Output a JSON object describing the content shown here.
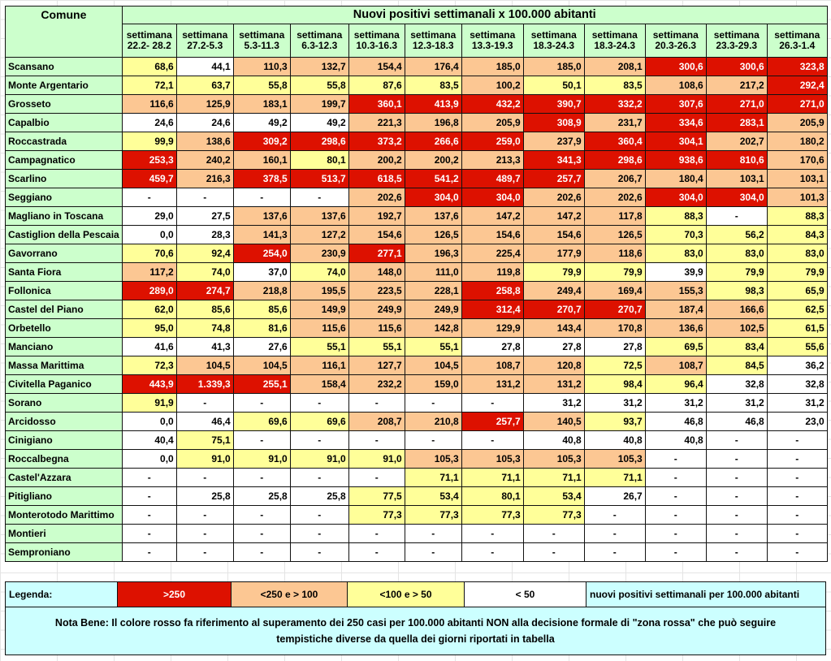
{
  "header": {
    "comune_label": "Comune",
    "title": "Nuovi positivi settimanali x 100.000 abitanti",
    "week_prefix": "settimana",
    "weeks": [
      "22.2- 28.2",
      "27.2-5.3",
      "5.3-11.3",
      "6.3-12.3",
      "10.3-16.3",
      "12.3-18.3",
      "13.3-19.3",
      "18.3-24.3",
      "18.3-24.3",
      "20.3-26.3",
      "23.3-29.3",
      "26.3-1.4"
    ]
  },
  "rows": [
    {
      "name": "Scansano",
      "values": [
        "68,6",
        "44,1",
        "110,3",
        "132,7",
        "154,4",
        "176,4",
        "185,0",
        "185,0",
        "208,1",
        "300,6",
        "300,6",
        "323,8"
      ]
    },
    {
      "name": "Monte Argentario",
      "values": [
        "72,1",
        "63,7",
        "55,8",
        "55,8",
        "87,6",
        "83,5",
        "100,2",
        "50,1",
        "83,5",
        "108,6",
        "217,2",
        "292,4"
      ]
    },
    {
      "name": "Grosseto",
      "values": [
        "116,6",
        "125,9",
        "183,1",
        "199,7",
        "360,1",
        "413,9",
        "432,2",
        "390,7",
        "332,2",
        "307,6",
        "271,0",
        "271,0"
      ]
    },
    {
      "name": "Capalbio",
      "values": [
        "24,6",
        "24,6",
        "49,2",
        "49,2",
        "221,3",
        "196,8",
        "205,9",
        "308,9",
        "231,7",
        "334,6",
        "283,1",
        "205,9"
      ]
    },
    {
      "name": "Roccastrada",
      "values": [
        "99,9",
        "138,6",
        "309,2",
        "298,6",
        "373,2",
        "266,6",
        "259,0",
        "237,9",
        "360,4",
        "304,1",
        "202,7",
        "180,2"
      ]
    },
    {
      "name": "Campagnatico",
      "values": [
        "253,3",
        "240,2",
        "160,1",
        "80,1",
        "200,2",
        "200,2",
        "213,3",
        "341,3",
        "298,6",
        "938,6",
        "810,6",
        "170,6"
      ]
    },
    {
      "name": "Scarlino",
      "values": [
        "459,7",
        "216,3",
        "378,5",
        "513,7",
        "618,5",
        "541,2",
        "489,7",
        "257,7",
        "206,7",
        "180,4",
        "103,1",
        "103,1"
      ]
    },
    {
      "name": "Seggiano",
      "values": [
        "-",
        "-",
        "-",
        "-",
        "202,6",
        "304,0",
        "304,0",
        "202,6",
        "202,6",
        "304,0",
        "304,0",
        "101,3"
      ]
    },
    {
      "name": "Magliano in Toscana",
      "values": [
        "29,0",
        "27,5",
        "137,6",
        "137,6",
        "192,7",
        "137,6",
        "147,2",
        "147,2",
        "117,8",
        "88,3",
        "-",
        "88,3"
      ]
    },
    {
      "name": "Castiglion della Pescaia",
      "values": [
        "0,0",
        "28,3",
        "141,3",
        "127,2",
        "154,6",
        "126,5",
        "154,6",
        "154,6",
        "126,5",
        "70,3",
        "56,2",
        "84,3"
      ]
    },
    {
      "name": "Gavorrano",
      "values": [
        "70,6",
        "92,4",
        "254,0",
        "230,9",
        "277,1",
        "196,3",
        "225,4",
        "177,9",
        "118,6",
        "83,0",
        "83,0",
        "83,0"
      ]
    },
    {
      "name": "Santa Fiora",
      "values": [
        "117,2",
        "74,0",
        "37,0",
        "74,0",
        "148,0",
        "111,0",
        "119,8",
        "79,9",
        "79,9",
        "39,9",
        "79,9",
        "79,9"
      ]
    },
    {
      "name": "Follonica",
      "values": [
        "289,0",
        "274,7",
        "218,8",
        "195,5",
        "223,5",
        "228,1",
        "258,8",
        "249,4",
        "169,4",
        "155,3",
        "98,3",
        "65,9"
      ]
    },
    {
      "name": "Castel del Piano",
      "values": [
        "62,0",
        "85,6",
        "85,6",
        "149,9",
        "249,9",
        "249,9",
        "312,4",
        "270,7",
        "270,7",
        "187,4",
        "166,6",
        "62,5"
      ]
    },
    {
      "name": "Orbetello",
      "values": [
        "95,0",
        "74,8",
        "81,6",
        "115,6",
        "115,6",
        "142,8",
        "129,9",
        "143,4",
        "170,8",
        "136,6",
        "102,5",
        "61,5"
      ]
    },
    {
      "name": "Manciano",
      "values": [
        "41,6",
        "41,3",
        "27,6",
        "55,1",
        "55,1",
        "55,1",
        "27,8",
        "27,8",
        "27,8",
        "69,5",
        "83,4",
        "55,6"
      ]
    },
    {
      "name": "Massa Marittima",
      "values": [
        "72,3",
        "104,5",
        "104,5",
        "116,1",
        "127,7",
        "104,5",
        "108,7",
        "120,8",
        "72,5",
        "108,7",
        "84,5",
        "36,2"
      ]
    },
    {
      "name": "Civitella Paganico",
      "values": [
        "443,9",
        "1.339,3",
        "255,1",
        "158,4",
        "232,2",
        "159,0",
        "131,2",
        "131,2",
        "98,4",
        "96,4",
        "32,8",
        "32,8"
      ]
    },
    {
      "name": "Sorano",
      "values": [
        "91,9",
        "-",
        "-",
        "-",
        "-",
        "-",
        "-",
        "31,2",
        "31,2",
        "31,2",
        "31,2",
        "31,2"
      ]
    },
    {
      "name": "Arcidosso",
      "values": [
        "0,0",
        "46,4",
        "69,6",
        "69,6",
        "208,7",
        "210,8",
        "257,7",
        "140,5",
        "93,7",
        "46,8",
        "46,8",
        "23,0"
      ]
    },
    {
      "name": "Cinigiano",
      "values": [
        "40,4",
        "75,1",
        "-",
        "-",
        "-",
        "-",
        "-",
        "40,8",
        "40,8",
        "40,8",
        "-",
        "-"
      ]
    },
    {
      "name": "Roccalbegna",
      "values": [
        "0,0",
        "91,0",
        "91,0",
        "91,0",
        "91,0",
        "105,3",
        "105,3",
        "105,3",
        "105,3",
        "-",
        "-",
        "-"
      ]
    },
    {
      "name": "Castel'Azzara",
      "values": [
        "-",
        "-",
        "-",
        "-",
        "-",
        "71,1",
        "71,1",
        "71,1",
        "71,1",
        "-",
        "-",
        "-"
      ]
    },
    {
      "name": "Pitigliano",
      "values": [
        "-",
        "25,8",
        "25,8",
        "25,8",
        "77,5",
        "53,4",
        "80,1",
        "53,4",
        "26,7",
        "-",
        "-",
        "-"
      ]
    },
    {
      "name": "Monterotodo Marittimo",
      "values": [
        "-",
        "-",
        "-",
        "-",
        "77,3",
        "77,3",
        "77,3",
        "77,3",
        "-",
        "-",
        "-",
        "-"
      ]
    },
    {
      "name": "Montieri",
      "values": [
        "-",
        "-",
        "-",
        "-",
        "-",
        "-",
        "-",
        "-",
        "-",
        "-",
        "-",
        "-"
      ]
    },
    {
      "name": "Semproniano",
      "values": [
        "-",
        "-",
        "-",
        "-",
        "-",
        "-",
        "-",
        "-",
        "-",
        "-",
        "-",
        "-"
      ]
    }
  ],
  "legend": {
    "label": "Legenda:",
    "items": [
      {
        "text": ">250",
        "color": "#dd1100"
      },
      {
        "text": "<250 e > 100",
        "color": "#fcc793"
      },
      {
        "text": "<100 e > 50",
        "color": "#ffff99"
      },
      {
        "text": "< 50",
        "color": "#ffffff"
      }
    ],
    "description": "nuovi positivi settimanali per 100.000 abitanti",
    "note_line1": "Nota Bene: Il colore rosso fa riferimento al superamento dei 250 casi per 100.000 abitanti NON alla decisione formale di \"zona rossa\" che può seguire",
    "note_line2": "tempistiche diverse da quella dei giorni riportati in tabella"
  }
}
